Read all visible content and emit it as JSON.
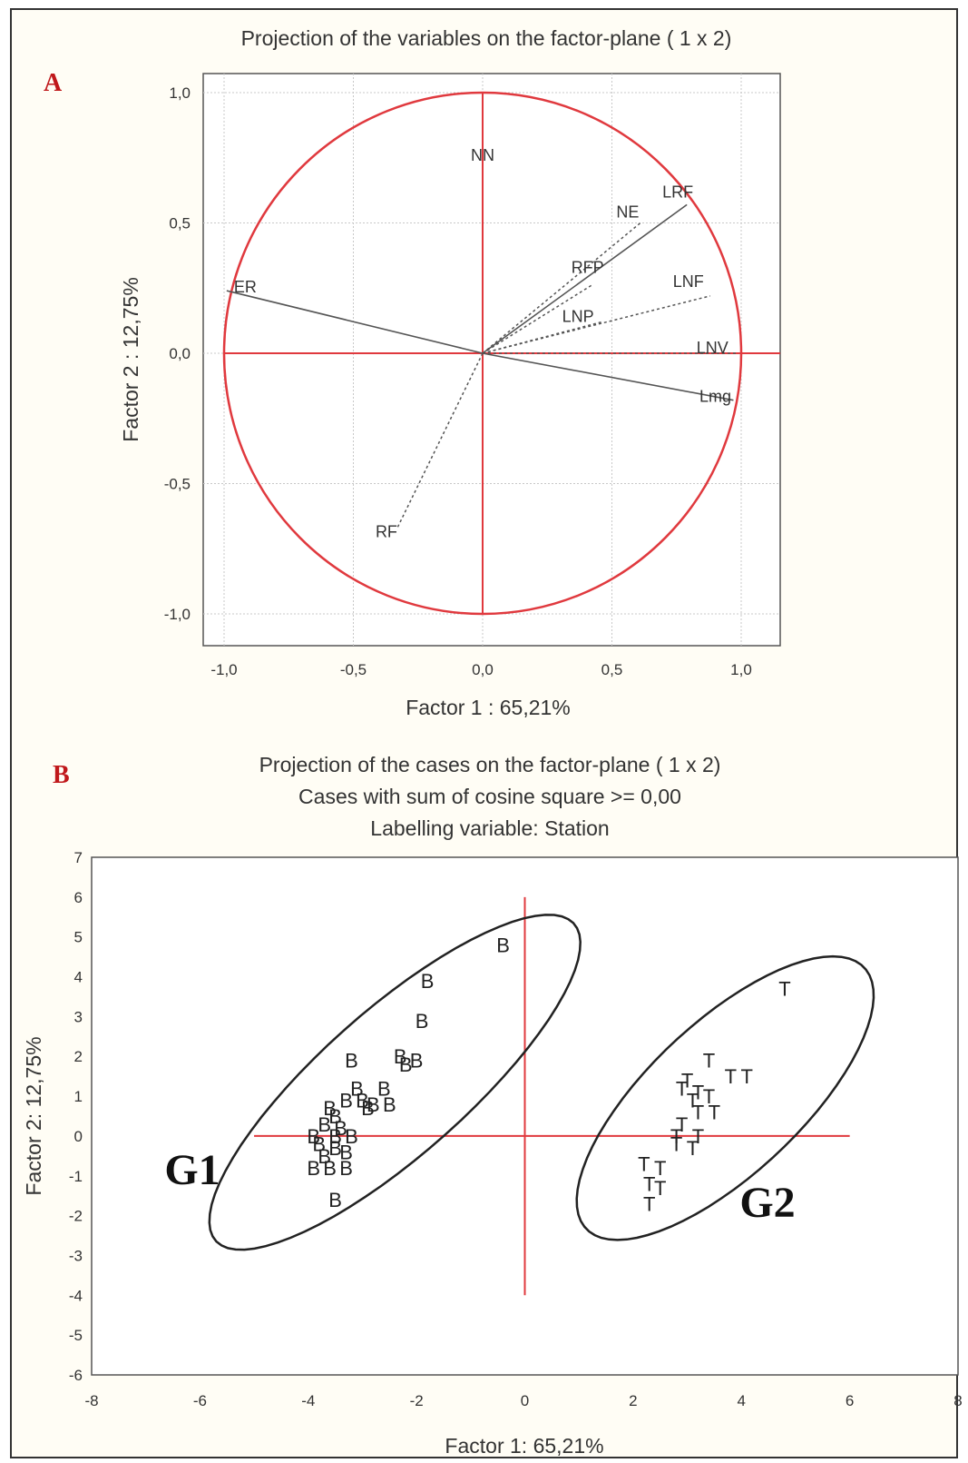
{
  "chart_data": [
    {
      "panel_label": "A",
      "type": "scatter",
      "title": "Projection of the variables on the factor-plane (  1 x   2)",
      "xlabel": "Factor 1 : 65,21%",
      "ylabel": "Factor 2 : 12,75%",
      "xlim": [
        -1.1,
        1.1
      ],
      "ylim": [
        -1.1,
        1.1
      ],
      "xticks": [
        "-1,0",
        "-0,5",
        "0,0",
        "0,5",
        "1,0"
      ],
      "xtick_values": [
        -1.0,
        -0.5,
        0.0,
        0.5,
        1.0
      ],
      "yticks": [
        "1,0",
        "0,5",
        "0,0",
        "-0,5",
        "-1,0"
      ],
      "ytick_values": [
        1.0,
        0.5,
        0.0,
        -0.5,
        -1.0
      ],
      "grid": true,
      "unit_circle": true,
      "circle_color": "#e0393e",
      "variables": [
        {
          "name": "NN",
          "x": 0.0,
          "y": 0.76
        },
        {
          "name": "LRF",
          "x": 0.79,
          "y": 0.57
        },
        {
          "name": "NE",
          "x": 0.61,
          "y": 0.5
        },
        {
          "name": "RFP",
          "x": 0.42,
          "y": 0.26
        },
        {
          "name": "LNF",
          "x": 0.88,
          "y": 0.22
        },
        {
          "name": "LNP",
          "x": 0.46,
          "y": 0.12
        },
        {
          "name": "LNV",
          "x": 0.98,
          "y": 0.0
        },
        {
          "name": "Lmg",
          "x": 0.97,
          "y": -0.18
        },
        {
          "name": "RF",
          "x": -0.33,
          "y": -0.67
        },
        {
          "name": "ER",
          "x": -0.99,
          "y": 0.24
        }
      ]
    },
    {
      "panel_label": "B",
      "type": "scatter",
      "title": "Projection of the cases on the factor-plane (  1 x 2)",
      "subtitle_1": "Cases with sum of cosine square >=  0,00",
      "subtitle_2": "Labelling variable: Station",
      "xlabel": "Factor 1: 65,21%",
      "ylabel": "Factor 2: 12,75%",
      "xlim": [
        -8,
        8
      ],
      "ylim": [
        -6,
        7
      ],
      "xticks": [
        "-8",
        "-6",
        "-4",
        "-2",
        "0",
        "2",
        "4",
        "6",
        "8"
      ],
      "xtick_values": [
        -8,
        -6,
        -4,
        -2,
        0,
        2,
        4,
        6,
        8
      ],
      "yticks": [
        "7",
        "6",
        "5",
        "4",
        "3",
        "2",
        "1",
        "0",
        "-1",
        "-2",
        "-3",
        "-4",
        "-5",
        "-6"
      ],
      "ytick_values": [
        7,
        6,
        5,
        4,
        3,
        2,
        1,
        0,
        -1,
        -2,
        -3,
        -4,
        -5,
        -6
      ],
      "grid": false,
      "reference_line_color": "#e0393e",
      "series": [
        {
          "name": "B",
          "label_char": "B",
          "points": [
            [
              -0.4,
              4.8
            ],
            [
              -1.8,
              3.9
            ],
            [
              -1.9,
              2.9
            ],
            [
              -3.2,
              1.9
            ],
            [
              -2.3,
              2.0
            ],
            [
              -2.0,
              1.9
            ],
            [
              -2.2,
              1.8
            ],
            [
              -3.1,
              1.2
            ],
            [
              -2.6,
              1.2
            ],
            [
              -3.3,
              0.9
            ],
            [
              -3.0,
              0.9
            ],
            [
              -2.8,
              0.8
            ],
            [
              -2.5,
              0.8
            ],
            [
              -2.9,
              0.7
            ],
            [
              -3.6,
              0.7
            ],
            [
              -3.5,
              0.5
            ],
            [
              -3.7,
              0.3
            ],
            [
              -3.4,
              0.2
            ],
            [
              -3.9,
              0.0
            ],
            [
              -3.5,
              0.0
            ],
            [
              -3.2,
              0.0
            ],
            [
              -3.8,
              -0.2
            ],
            [
              -3.5,
              -0.3
            ],
            [
              -3.3,
              -0.4
            ],
            [
              -3.7,
              -0.5
            ],
            [
              -3.9,
              -0.8
            ],
            [
              -3.6,
              -0.8
            ],
            [
              -3.3,
              -0.8
            ],
            [
              -3.5,
              -1.6
            ]
          ]
        },
        {
          "name": "T",
          "label_char": "T",
          "points": [
            [
              4.8,
              3.7
            ],
            [
              3.4,
              1.9
            ],
            [
              4.1,
              1.5
            ],
            [
              3.8,
              1.5
            ],
            [
              3.0,
              1.4
            ],
            [
              2.9,
              1.2
            ],
            [
              3.2,
              1.1
            ],
            [
              3.4,
              1.0
            ],
            [
              3.1,
              0.9
            ],
            [
              3.5,
              0.6
            ],
            [
              3.2,
              0.6
            ],
            [
              2.9,
              0.3
            ],
            [
              2.8,
              0.0
            ],
            [
              3.2,
              0.0
            ],
            [
              2.8,
              -0.2
            ],
            [
              3.1,
              -0.3
            ],
            [
              2.2,
              -0.7
            ],
            [
              2.5,
              -0.8
            ],
            [
              2.3,
              -1.2
            ],
            [
              2.5,
              -1.3
            ],
            [
              2.3,
              -1.7
            ]
          ]
        }
      ],
      "groups": [
        {
          "label": "G1",
          "center": [
            -2.4,
            1.35
          ],
          "semi_major": 5.2,
          "semi_minor": 1.55,
          "angle_deg": 52
        },
        {
          "label": "G2",
          "center": [
            3.7,
            0.95
          ],
          "semi_major": 4.2,
          "semi_minor": 1.6,
          "angle_deg": 55
        }
      ]
    }
  ]
}
